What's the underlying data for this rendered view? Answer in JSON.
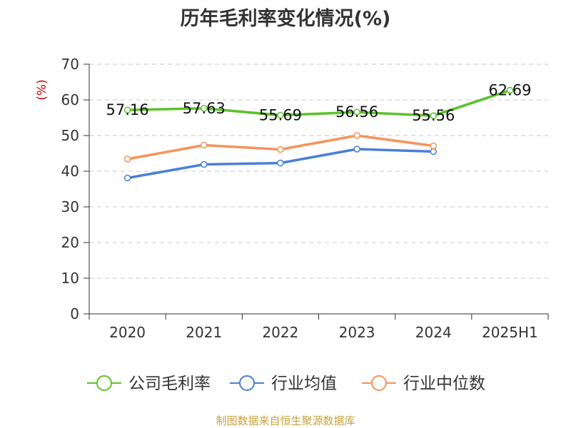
{
  "chart_data": {
    "type": "line",
    "title": "历年毛利率变化情况(%)",
    "ylabel": "(%)",
    "categories": [
      "2020",
      "2021",
      "2022",
      "2023",
      "2024",
      "2025H1"
    ],
    "ylim": [
      0,
      70
    ],
    "yticks": [
      "0",
      "10",
      "20",
      "30",
      "40",
      "50",
      "60",
      "70"
    ],
    "grid": true,
    "legend_position": "bottom",
    "series": [
      {
        "name": "公司毛利率",
        "color": "#5bc22a",
        "values": [
          57.16,
          57.63,
          55.69,
          56.56,
          55.56,
          62.69
        ],
        "data_labels": [
          "57.16",
          "57.63",
          "55.69",
          "56.56",
          "55.56",
          "62.69"
        ]
      },
      {
        "name": "行业均值",
        "color": "#4a7fd6",
        "values": [
          38.1,
          41.9,
          42.3,
          46.2,
          45.5,
          null
        ]
      },
      {
        "name": "行业中位数",
        "color": "#f5935a",
        "values": [
          43.4,
          47.3,
          46.1,
          50.0,
          47.1,
          null
        ]
      }
    ]
  },
  "footer": {
    "source": "制图数据来自恒生聚源数据库"
  }
}
